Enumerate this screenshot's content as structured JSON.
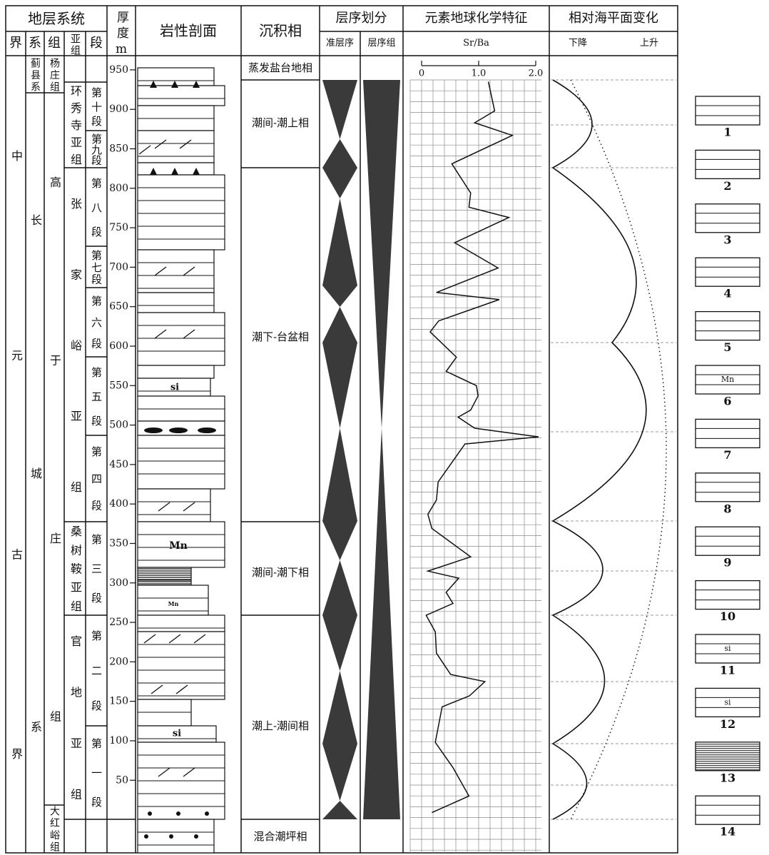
{
  "header": {
    "strata_system": "地层系统",
    "erathem": "界",
    "system": "系",
    "formation": "组",
    "subformation": "亚组",
    "member": "段",
    "thickness": "厚度m",
    "lithology": "岩性剖面",
    "facies": "沉积相",
    "sequence": "层序划分",
    "parasequence": "准层序",
    "sequence_set": "层序组",
    "geochem": "元素地球化学特征",
    "sea_level": "相对海平面变化",
    "fall": "下降",
    "rise": "上升"
  },
  "strata": {
    "erathem": [
      "中元古界"
    ],
    "systems": [
      "蓟县系",
      "长城系"
    ],
    "formations": [
      "杨庄组",
      "高于庄组",
      "大红峪组"
    ],
    "subformations": [
      "环秀寺亚组",
      "张家峪亚组",
      "桑树鞍亚组",
      "官地亚组"
    ],
    "members": [
      "第十段",
      "第九段",
      "第八段",
      "第七段",
      "第六段",
      "第五段",
      "第四段",
      "第三段",
      "第二段",
      "第一段"
    ]
  },
  "facies": [
    "蒸发盐台地相",
    "潮间-潮上相",
    "潮下-台盆相",
    "潮间-潮下相",
    "潮上-潮间相",
    "混合潮坪相"
  ],
  "lithology_labels": [
    "si",
    "Mn",
    "Mn",
    "si"
  ],
  "chart_data": {
    "type": "line",
    "xlabel": "Sr/Ba",
    "xlim": [
      0,
      2
    ],
    "xticks": [
      0,
      {
        "value": 1,
        "label": "1.0"
      },
      {
        "value": 2,
        "label": "2.0"
      }
    ],
    "ylim": [
      -42,
      968
    ],
    "yticks": [
      950,
      900,
      850,
      800,
      750,
      700,
      650,
      600,
      550,
      500,
      450,
      400,
      350,
      300,
      250,
      200,
      150,
      100,
      50
    ],
    "series": [
      {
        "y": [
          935,
          898,
          883,
          867,
          831,
          794,
          776,
          763,
          731,
          699,
          668,
          659,
          632,
          618,
          586,
          568,
          550,
          537,
          519,
          510,
          496,
          485,
          476,
          428,
          405,
          387,
          369,
          333,
          315,
          306,
          288,
          274,
          259,
          238,
          211,
          184,
          175,
          157,
          143,
          98,
          66,
          30,
          9
        ],
        "values": [
          1.17,
          1.28,
          0.93,
          1.59,
          0.53,
          0.86,
          0.83,
          1.53,
          0.58,
          1.34,
          0.26,
          1.36,
          0.3,
          0.15,
          0.61,
          0.43,
          0.96,
          0.99,
          0.86,
          0.64,
          0.93,
          2.05,
          0.76,
          0.29,
          0.26,
          0.11,
          0.18,
          0.86,
          0.11,
          0.65,
          0.43,
          0.55,
          0.08,
          0.24,
          0.26,
          0.51,
          1.11,
          0.84,
          0.36,
          0.24,
          0.55,
          0.83,
          0.18
        ]
      }
    ]
  },
  "legend": [
    {
      "number": 1
    },
    {
      "number": 2
    },
    {
      "number": 3
    },
    {
      "number": 4
    },
    {
      "number": 5
    },
    {
      "number": 6,
      "text": "Mn"
    },
    {
      "number": 7
    },
    {
      "number": 8
    },
    {
      "number": 9
    },
    {
      "number": 10
    },
    {
      "number": 11,
      "text": "si"
    },
    {
      "number": 12,
      "text": "si"
    },
    {
      "number": 13
    },
    {
      "number": 14
    }
  ]
}
